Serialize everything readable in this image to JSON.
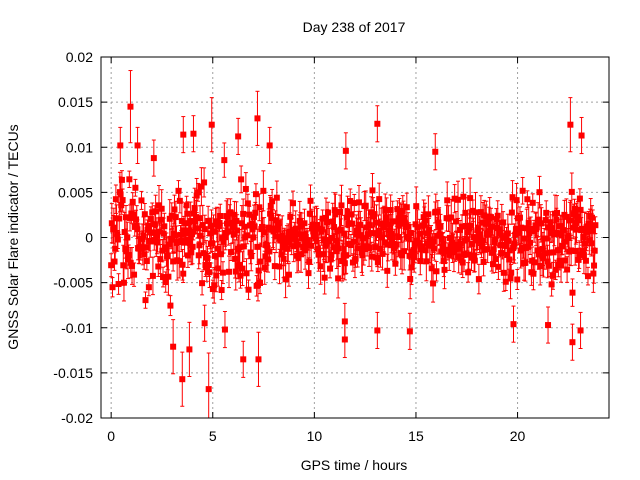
{
  "chart_data": {
    "type": "scatter",
    "title": "Day 238 of 2017",
    "xlabel": "GPS time / hours",
    "ylabel": "GNSS Solar Flare indicator / TECUs",
    "xlim": [
      -0.5,
      24.5
    ],
    "ylim": [
      -0.02,
      0.02
    ],
    "xticks": [
      0,
      5,
      10,
      15,
      20
    ],
    "xtick_labels": [
      "0",
      "5",
      "10",
      "15",
      "20"
    ],
    "yticks": [
      -0.02,
      -0.015,
      -0.01,
      -0.005,
      0,
      0.005,
      0.01,
      0.015,
      0.02
    ],
    "ytick_labels": [
      "-0.02",
      "-0.015",
      "-0.01",
      "-0.005",
      "0",
      "0.005",
      "0.01",
      "0.015",
      "0.02"
    ],
    "grid": true,
    "series": [
      {
        "color": "#ff0000",
        "marker": "square",
        "error_bars": true,
        "x_range": [
          0,
          23.83
        ],
        "typical_spread": 0.004,
        "typical_error": 0.0015,
        "highlighted_points": [
          {
            "x": 0.45,
            "y": 0.0102,
            "err": 0.002
          },
          {
            "x": 0.95,
            "y": 0.0145,
            "err": 0.004
          },
          {
            "x": 1.3,
            "y": 0.0102,
            "err": 0.002
          },
          {
            "x": 2.1,
            "y": 0.0088,
            "err": 0.002
          },
          {
            "x": 3.05,
            "y": -0.0121,
            "err": 0.003
          },
          {
            "x": 3.5,
            "y": -0.0157,
            "err": 0.003
          },
          {
            "x": 3.55,
            "y": 0.0114,
            "err": 0.002
          },
          {
            "x": 3.85,
            "y": -0.0124,
            "err": 0.003
          },
          {
            "x": 4.05,
            "y": 0.0115,
            "err": 0.002
          },
          {
            "x": 4.6,
            "y": -0.0095,
            "err": 0.002
          },
          {
            "x": 4.8,
            "y": -0.0168,
            "err": 0.004
          },
          {
            "x": 4.95,
            "y": 0.0125,
            "err": 0.003
          },
          {
            "x": 5.6,
            "y": -0.0102,
            "err": 0.002
          },
          {
            "x": 6.25,
            "y": 0.0112,
            "err": 0.002
          },
          {
            "x": 6.5,
            "y": -0.0135,
            "err": 0.002
          },
          {
            "x": 7.2,
            "y": 0.0132,
            "err": 0.003
          },
          {
            "x": 7.25,
            "y": -0.0135,
            "err": 0.003
          },
          {
            "x": 7.8,
            "y": 0.0102,
            "err": 0.002
          },
          {
            "x": 11.5,
            "y": -0.0113,
            "err": 0.002
          },
          {
            "x": 11.5,
            "y": -0.0093,
            "err": 0.002
          },
          {
            "x": 11.55,
            "y": 0.0096,
            "err": 0.002
          },
          {
            "x": 13.1,
            "y": 0.0126,
            "err": 0.002
          },
          {
            "x": 13.1,
            "y": -0.0103,
            "err": 0.002
          },
          {
            "x": 14.7,
            "y": -0.0104,
            "err": 0.002
          },
          {
            "x": 15.95,
            "y": 0.0095,
            "err": 0.002
          },
          {
            "x": 19.8,
            "y": -0.0096,
            "err": 0.002
          },
          {
            "x": 21.5,
            "y": -0.0097,
            "err": 0.002
          },
          {
            "x": 22.6,
            "y": 0.0125,
            "err": 0.003
          },
          {
            "x": 22.7,
            "y": -0.0116,
            "err": 0.002
          },
          {
            "x": 23.15,
            "y": 0.0113,
            "err": 0.002
          },
          {
            "x": 23.1,
            "y": -0.0103,
            "err": 0.002
          }
        ]
      }
    ]
  }
}
